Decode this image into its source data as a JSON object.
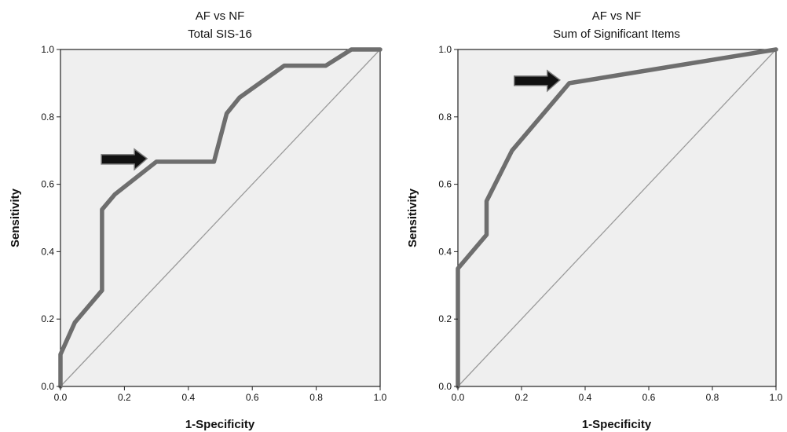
{
  "chart_data": [
    {
      "type": "line",
      "title": "AF vs NF",
      "subtitle": "Total SIS-16",
      "xlabel": "1-Specificity",
      "ylabel": "Sensitivity",
      "xlim": [
        0,
        1
      ],
      "ylim": [
        0,
        1
      ],
      "x_ticks": [
        "0.0",
        "0.2",
        "0.4",
        "0.6",
        "0.8",
        "1.0"
      ],
      "y_ticks": [
        "0.0",
        "0.2",
        "0.4",
        "0.6",
        "0.8",
        "1.0"
      ],
      "grid": false,
      "reference_line": {
        "x": [
          0,
          1
        ],
        "y": [
          0,
          1
        ]
      },
      "series": [
        {
          "x": [
            0.0,
            0.0,
            0.045,
            0.13,
            0.13,
            0.17,
            0.3,
            0.48,
            0.52,
            0.56,
            0.7,
            0.83,
            0.91,
            1.0
          ],
          "y": [
            0.0,
            0.095,
            0.19,
            0.285,
            0.525,
            0.57,
            0.667,
            0.667,
            0.81,
            0.857,
            0.952,
            0.952,
            1.0,
            1.0
          ]
        }
      ],
      "annotation": {
        "type": "arrow",
        "x": 0.3,
        "y": 0.667
      }
    },
    {
      "type": "line",
      "title": "AF vs NF",
      "subtitle": "Sum of Significant Items",
      "xlabel": "1-Specificity",
      "ylabel": "Sensitivity",
      "xlim": [
        0,
        1
      ],
      "ylim": [
        0,
        1
      ],
      "x_ticks": [
        "0.0",
        "0.2",
        "0.4",
        "0.6",
        "0.8",
        "1.0"
      ],
      "y_ticks": [
        "0.0",
        "0.2",
        "0.4",
        "0.6",
        "0.8",
        "1.0"
      ],
      "grid": false,
      "reference_line": {
        "x": [
          0,
          1
        ],
        "y": [
          0,
          1
        ]
      },
      "series": [
        {
          "x": [
            0.0,
            0.0,
            0.09,
            0.09,
            0.17,
            0.35,
            1.0
          ],
          "y": [
            0.0,
            0.35,
            0.45,
            0.55,
            0.7,
            0.9,
            1.0
          ]
        }
      ],
      "annotation": {
        "type": "arrow",
        "x": 0.35,
        "y": 0.9
      }
    }
  ]
}
